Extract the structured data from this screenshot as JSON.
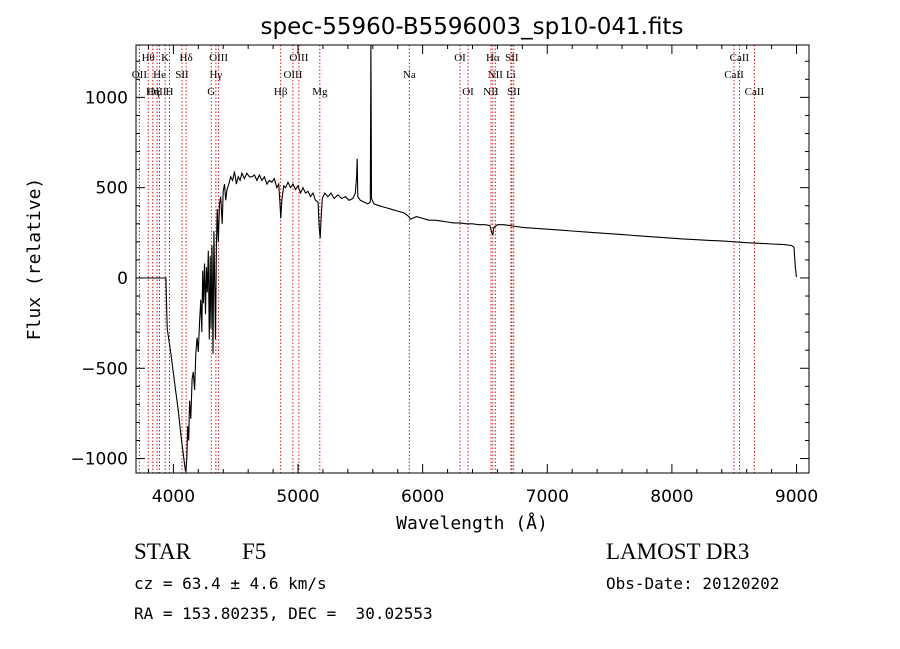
{
  "chart_data": {
    "type": "line",
    "title": "spec-55960-B5596003_sp10-041.fits",
    "xlabel": "Wavelength (Å)",
    "ylabel": "Flux (relative)",
    "xlim": [
      3700,
      9100
    ],
    "ylim": [
      -1080,
      1290
    ],
    "x_ticks": [
      4000,
      5000,
      6000,
      7000,
      8000,
      9000
    ],
    "y_ticks": [
      -1000,
      -500,
      0,
      500,
      1000
    ],
    "line_color": "#000000",
    "marker_color": "#cc0000",
    "series": [
      {
        "name": "flux",
        "points": [
          [
            3700,
            0
          ],
          [
            3780,
            0
          ],
          [
            3860,
            0
          ],
          [
            3920,
            0
          ],
          [
            3940,
            0
          ],
          [
            3950,
            -280
          ],
          [
            3980,
            -420
          ],
          [
            4010,
            -580
          ],
          [
            4040,
            -740
          ],
          [
            4060,
            -870
          ],
          [
            4080,
            -980
          ],
          [
            4095,
            -1060
          ],
          [
            4100,
            -1075
          ],
          [
            4108,
            -1000
          ],
          [
            4115,
            -820
          ],
          [
            4123,
            -900
          ],
          [
            4130,
            -680
          ],
          [
            4140,
            -780
          ],
          [
            4150,
            -560
          ],
          [
            4160,
            -520
          ],
          [
            4170,
            -620
          ],
          [
            4180,
            -420
          ],
          [
            4190,
            -330
          ],
          [
            4200,
            -410
          ],
          [
            4210,
            -240
          ],
          [
            4220,
            -120
          ],
          [
            4228,
            -300
          ],
          [
            4235,
            40
          ],
          [
            4242,
            -140
          ],
          [
            4250,
            80
          ],
          [
            4258,
            -200
          ],
          [
            4265,
            60
          ],
          [
            4272,
            -80
          ],
          [
            4280,
            150
          ],
          [
            4288,
            -340
          ],
          [
            4295,
            120
          ],
          [
            4302,
            -280
          ],
          [
            4310,
            180
          ],
          [
            4318,
            -420
          ],
          [
            4325,
            260
          ],
          [
            4332,
            -60
          ],
          [
            4338,
            -340
          ],
          [
            4345,
            180
          ],
          [
            4352,
            380
          ],
          [
            4360,
            200
          ],
          [
            4370,
            410
          ],
          [
            4380,
            450
          ],
          [
            4392,
            300
          ],
          [
            4400,
            480
          ],
          [
            4410,
            520
          ],
          [
            4420,
            430
          ],
          [
            4430,
            490
          ],
          [
            4445,
            520
          ],
          [
            4460,
            560
          ],
          [
            4475,
            540
          ],
          [
            4490,
            590
          ],
          [
            4505,
            520
          ],
          [
            4520,
            560
          ],
          [
            4535,
            540
          ],
          [
            4550,
            580
          ],
          [
            4570,
            550
          ],
          [
            4590,
            580
          ],
          [
            4610,
            560
          ],
          [
            4630,
            560
          ],
          [
            4650,
            570
          ],
          [
            4670,
            540
          ],
          [
            4690,
            570
          ],
          [
            4710,
            540
          ],
          [
            4730,
            560
          ],
          [
            4750,
            520
          ],
          [
            4770,
            540
          ],
          [
            4790,
            530
          ],
          [
            4810,
            550
          ],
          [
            4830,
            500
          ],
          [
            4845,
            520
          ],
          [
            4855,
            420
          ],
          [
            4862,
            330
          ],
          [
            4870,
            430
          ],
          [
            4885,
            510
          ],
          [
            4900,
            500
          ],
          [
            4920,
            530
          ],
          [
            4940,
            500
          ],
          [
            4960,
            520
          ],
          [
            4980,
            490
          ],
          [
            5000,
            510
          ],
          [
            5020,
            470
          ],
          [
            5040,
            500
          ],
          [
            5060,
            470
          ],
          [
            5080,
            480
          ],
          [
            5100,
            450
          ],
          [
            5120,
            470
          ],
          [
            5140,
            430
          ],
          [
            5160,
            420
          ],
          [
            5170,
            280
          ],
          [
            5178,
            220
          ],
          [
            5185,
            330
          ],
          [
            5195,
            440
          ],
          [
            5215,
            470
          ],
          [
            5240,
            450
          ],
          [
            5265,
            470
          ],
          [
            5290,
            440
          ],
          [
            5320,
            460
          ],
          [
            5350,
            440
          ],
          [
            5380,
            450
          ],
          [
            5410,
            430
          ],
          [
            5440,
            440
          ],
          [
            5460,
            470
          ],
          [
            5470,
            560
          ],
          [
            5475,
            660
          ],
          [
            5480,
            450
          ],
          [
            5500,
            430
          ],
          [
            5530,
            420
          ],
          [
            5560,
            410
          ],
          [
            5580,
            420
          ],
          [
            5585,
            1290
          ],
          [
            5590,
            440
          ],
          [
            5610,
            410
          ],
          [
            5650,
            400
          ],
          [
            5700,
            390
          ],
          [
            5750,
            380
          ],
          [
            5800,
            370
          ],
          [
            5850,
            360
          ],
          [
            5890,
            340
          ],
          [
            5900,
            325
          ],
          [
            5950,
            340
          ],
          [
            6000,
            330
          ],
          [
            6050,
            320
          ],
          [
            6100,
            320
          ],
          [
            6150,
            315
          ],
          [
            6200,
            310
          ],
          [
            6250,
            305
          ],
          [
            6300,
            305
          ],
          [
            6350,
            300
          ],
          [
            6400,
            300
          ],
          [
            6450,
            295
          ],
          [
            6500,
            295
          ],
          [
            6540,
            290
          ],
          [
            6555,
            250
          ],
          [
            6563,
            240
          ],
          [
            6572,
            280
          ],
          [
            6600,
            295
          ],
          [
            6650,
            295
          ],
          [
            6700,
            290
          ],
          [
            6750,
            285
          ],
          [
            6800,
            280
          ],
          [
            6900,
            275
          ],
          [
            7000,
            270
          ],
          [
            7100,
            265
          ],
          [
            7200,
            260
          ],
          [
            7300,
            255
          ],
          [
            7400,
            250
          ],
          [
            7500,
            245
          ],
          [
            7600,
            240
          ],
          [
            7700,
            235
          ],
          [
            7800,
            230
          ],
          [
            7900,
            225
          ],
          [
            8000,
            220
          ],
          [
            8100,
            215
          ],
          [
            8200,
            212
          ],
          [
            8300,
            208
          ],
          [
            8400,
            205
          ],
          [
            8500,
            200
          ],
          [
            8600,
            195
          ],
          [
            8700,
            192
          ],
          [
            8800,
            188
          ],
          [
            8900,
            185
          ],
          [
            8960,
            180
          ],
          [
            8980,
            170
          ],
          [
            8990,
            60
          ],
          [
            9000,
            5
          ]
        ]
      }
    ],
    "line_markers": [
      {
        "label": "Hθ",
        "wl": 3798,
        "row": 1
      },
      {
        "label": "OII",
        "wl": 3727,
        "row": 2
      },
      {
        "label": "OIII",
        "wl": 3869,
        "row": 3
      },
      {
        "label": "K",
        "wl": 3934,
        "row": 1
      },
      {
        "label": "He",
        "wl": 3889,
        "row": 2
      },
      {
        "label": "Hη",
        "wl": 3835,
        "row": 3
      },
      {
        "label": "SII",
        "wl": 4069,
        "row": 2
      },
      {
        "label": "H",
        "wl": 3969,
        "row": 3
      },
      {
        "label": "Hδ",
        "wl": 4102,
        "row": 1
      },
      {
        "label": "OIII",
        "wl": 4363,
        "row": 1
      },
      {
        "label": "Hγ",
        "wl": 4341,
        "row": 2
      },
      {
        "label": "G",
        "wl": 4304,
        "row": 3
      },
      {
        "label": "OIII",
        "wl": 5007,
        "row": 1
      },
      {
        "label": "OIII",
        "wl": 4959,
        "row": 2
      },
      {
        "label": "Hβ",
        "wl": 4861,
        "row": 3
      },
      {
        "label": "Mg",
        "wl": 5175,
        "row": 3
      },
      {
        "label": "Na",
        "wl": 5893,
        "row": 2
      },
      {
        "label": "OI",
        "wl": 6300,
        "row": 1
      },
      {
        "label": "OI",
        "wl": 6364,
        "row": 3
      },
      {
        "label": "Hα",
        "wl": 6563,
        "row": 1
      },
      {
        "label": "NII",
        "wl": 6583,
        "row": 2
      },
      {
        "label": "NII",
        "wl": 6548,
        "row": 3
      },
      {
        "label": "SII",
        "wl": 6716,
        "row": 1
      },
      {
        "label": "Li",
        "wl": 6708,
        "row": 2
      },
      {
        "label": "SII",
        "wl": 6731,
        "row": 3
      },
      {
        "label": "CaII",
        "wl": 8542,
        "row": 1
      },
      {
        "label": "CaII",
        "wl": 8498,
        "row": 2
      },
      {
        "label": "CaII",
        "wl": 8662,
        "row": 3
      }
    ]
  },
  "info": {
    "class": "STAR",
    "subclass": "F5",
    "survey": "LAMOST DR3",
    "redshift": "cz = 63.4 ± 4.6 km/s",
    "obs_date": "Obs-Date: 20120202",
    "coords": "RA = 153.80235, DEC =  30.02553"
  }
}
